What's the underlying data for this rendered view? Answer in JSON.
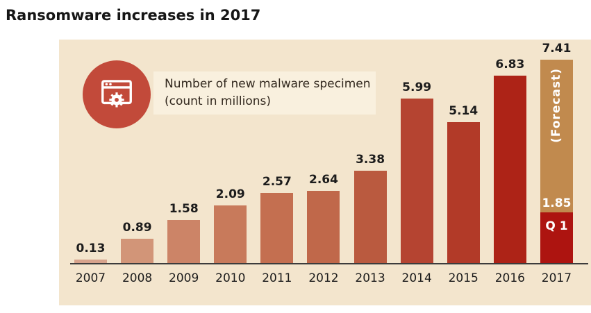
{
  "page_title": "Ransomware increases in 2017",
  "legend": {
    "line1": "Number of new malware specimen",
    "line2": "(count in millions)"
  },
  "colors": {
    "panel_background": "#f3e5cd",
    "legend_box_background": "#f9f0de",
    "icon_circle": "#c24a3a",
    "axis_line": "#3c3c3c"
  },
  "chart_data": {
    "type": "bar",
    "title": "Ransomware increases in 2017",
    "ylabel": "Number of new malware specimen (count in millions)",
    "categories": [
      "2007",
      "2008",
      "2009",
      "2010",
      "2011",
      "2012",
      "2013",
      "2014",
      "2015",
      "2016",
      "2017"
    ],
    "values": [
      0.13,
      0.89,
      1.58,
      2.09,
      2.57,
      2.64,
      3.38,
      5.99,
      5.14,
      6.83,
      7.41
    ],
    "value_labels": [
      "0.13",
      "0.89",
      "1.58",
      "2.09",
      "2.57",
      "2.64",
      "3.38",
      "5.99",
      "5.14",
      "6.83",
      "7.41"
    ],
    "bar_colors": [
      "#d7a38c",
      "#d29578",
      "#cc8467",
      "#c87a5b",
      "#c46f50",
      "#c0684a",
      "#ba5a3f",
      "#b54431",
      "#b23a28",
      "#ad2317",
      "#ad1410"
    ],
    "ylim": [
      0,
      8
    ],
    "grid": false,
    "legend_position": "top-left",
    "forecast": {
      "year": "2017",
      "total": 7.41,
      "total_label": "7.41",
      "q1_value": 1.85,
      "q1_value_label": "1.85",
      "q1_label": "Q 1",
      "forecast_label": "(Forecast)",
      "forecast_color": "#c18a4e",
      "q1_color": "#ad1410"
    }
  }
}
